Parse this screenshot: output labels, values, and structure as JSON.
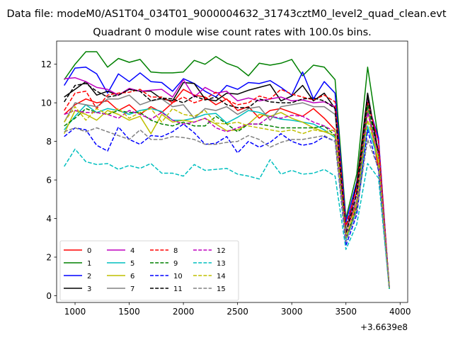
{
  "figure": {
    "suptitle": "Data file: modeM0/AS1T04_034T01_9000004632_31743cztM0_level2_quad_clean.evt"
  },
  "chart_data": {
    "type": "line",
    "title": "Quadrant 0 module wise count rates with 100.0s bins.",
    "xlabel": "",
    "ylabel": "",
    "x_offset_label": "+3.6639e8",
    "xlim": [
      830,
      4070
    ],
    "ylim": [
      -0.35,
      13.2
    ],
    "xticks": [
      1000,
      1500,
      2000,
      2500,
      3000,
      3500,
      4000
    ],
    "xtick_labels": [
      "1000",
      "1500",
      "2000",
      "2500",
      "3000",
      "3500",
      "4000"
    ],
    "yticks": [
      0,
      2,
      4,
      6,
      8,
      10,
      12
    ],
    "ytick_labels": [
      "0",
      "2",
      "4",
      "6",
      "8",
      "10",
      "12"
    ],
    "grid": false,
    "legend_position": "lower-left",
    "legend_columns": 4,
    "x": [
      900,
      1000,
      1100,
      1200,
      1300,
      1400,
      1500,
      1600,
      1700,
      1800,
      1900,
      2000,
      2100,
      2200,
      2300,
      2400,
      2500,
      2600,
      2700,
      2800,
      2900,
      3000,
      3100,
      3200,
      3300,
      3400,
      3500,
      3600,
      3700,
      3800,
      3900
    ],
    "series": [
      {
        "name": "0",
        "color": "#ff0000",
        "dash": "solid",
        "values": [
          9.4,
          9.9,
          10.2,
          10.0,
          10.1,
          9.6,
          9.9,
          9.4,
          9.8,
          9.5,
          10.0,
          10.7,
          10.4,
          10.3,
          9.9,
          10.2,
          9.6,
          9.8,
          9.2,
          9.6,
          9.7,
          9.5,
          9.3,
          9.7,
          9.2,
          8.6,
          3.4,
          4.8,
          9.7,
          6.6,
          0.4
        ]
      },
      {
        "name": "1",
        "color": "#008000",
        "dash": "solid",
        "values": [
          11.2,
          12.0,
          12.65,
          12.65,
          11.85,
          12.3,
          12.1,
          12.25,
          11.6,
          11.55,
          11.55,
          11.6,
          12.2,
          12.0,
          12.4,
          12.05,
          11.85,
          11.4,
          12.05,
          11.95,
          12.05,
          12.25,
          11.4,
          11.95,
          11.85,
          11.2,
          4.0,
          6.3,
          11.85,
          8.1,
          0.35
        ]
      },
      {
        "name": "2",
        "color": "#0000ff",
        "dash": "solid",
        "values": [
          10.9,
          11.8,
          11.85,
          11.5,
          10.5,
          11.5,
          11.1,
          11.55,
          11.1,
          11.05,
          10.6,
          11.25,
          11.0,
          10.6,
          10.3,
          10.9,
          10.7,
          11.05,
          11.0,
          11.15,
          10.8,
          10.4,
          11.6,
          10.2,
          11.1,
          10.5,
          3.8,
          5.9,
          10.0,
          8.2,
          0.4
        ]
      },
      {
        "name": "3",
        "color": "#000000",
        "dash": "solid",
        "values": [
          10.3,
          10.7,
          11.1,
          10.4,
          10.6,
          10.4,
          10.7,
          10.6,
          10.6,
          10.2,
          10.1,
          11.05,
          11.0,
          10.2,
          10.1,
          10.5,
          10.45,
          10.65,
          10.8,
          10.95,
          10.1,
          10.35,
          10.9,
          10.1,
          10.5,
          9.7,
          3.3,
          5.8,
          10.5,
          7.4,
          0.5
        ]
      },
      {
        "name": "4",
        "color": "#bf00bf",
        "dash": "solid",
        "values": [
          11.25,
          11.3,
          11.1,
          10.8,
          10.7,
          10.4,
          10.75,
          10.6,
          10.65,
          10.7,
          10.3,
          11.2,
          10.3,
          10.8,
          10.5,
          10.6,
          10.1,
          10.25,
          10.1,
          10.2,
          10.3,
          10.1,
          10.15,
          10.0,
          10.05,
          9.8,
          3.3,
          5.4,
          10.1,
          8.0,
          0.4
        ]
      },
      {
        "name": "5",
        "color": "#00bfbf",
        "dash": "solid",
        "values": [
          8.6,
          9.3,
          9.9,
          9.5,
          9.7,
          9.6,
          9.4,
          9.6,
          9.7,
          9.55,
          9.1,
          9.1,
          9.2,
          9.4,
          9.45,
          8.95,
          9.25,
          9.6,
          9.5,
          9.3,
          9.15,
          9.1,
          9.0,
          8.9,
          8.6,
          8.2,
          2.9,
          4.4,
          8.8,
          7.0,
          0.35
        ]
      },
      {
        "name": "6",
        "color": "#bfbf00",
        "dash": "solid",
        "values": [
          8.4,
          9.6,
          9.4,
          9.1,
          9.6,
          9.4,
          9.1,
          9.3,
          8.4,
          9.4,
          9.0,
          9.1,
          9.0,
          9.2,
          8.9,
          8.55,
          8.6,
          8.9,
          9.4,
          9.3,
          9.5,
          9.2,
          9.0,
          8.7,
          8.5,
          8.3,
          3.0,
          4.6,
          9.6,
          6.9,
          0.4
        ]
      },
      {
        "name": "7",
        "color": "#808080",
        "dash": "solid",
        "values": [
          9.0,
          10.0,
          9.9,
          9.8,
          10.2,
          10.2,
          10.4,
          9.9,
          10.1,
          10.2,
          9.8,
          9.9,
          9.2,
          9.7,
          9.6,
          9.8,
          9.4,
          9.7,
          9.8,
          9.1,
          9.8,
          9.9,
          10.0,
          9.8,
          9.8,
          9.4,
          3.4,
          5.0,
          9.8,
          7.2,
          0.4
        ]
      },
      {
        "name": "8",
        "color": "#ff0000",
        "dash": "dashed",
        "values": [
          9.6,
          10.5,
          10.6,
          9.7,
          10.4,
          10.5,
          10.55,
          10.7,
          10.3,
          10.3,
          10.0,
          10.3,
          10.0,
          10.2,
          10.55,
          10.15,
          9.9,
          10.0,
          10.35,
          10.2,
          10.7,
          10.45,
          10.3,
          10.15,
          10.4,
          10.05,
          3.6,
          5.6,
          10.0,
          8.0,
          0.4
        ]
      },
      {
        "name": "9",
        "color": "#008000",
        "dash": "dashed",
        "values": [
          8.8,
          9.2,
          9.7,
          9.5,
          9.4,
          9.6,
          9.5,
          9.5,
          9.1,
          8.9,
          8.8,
          9.0,
          8.8,
          8.8,
          9.3,
          8.9,
          8.5,
          8.9,
          8.9,
          8.8,
          8.7,
          8.7,
          8.7,
          8.7,
          8.8,
          8.3,
          3.0,
          4.6,
          9.9,
          7.4,
          0.4
        ]
      },
      {
        "name": "10",
        "color": "#0000ff",
        "dash": "dashed",
        "values": [
          8.25,
          8.7,
          8.6,
          7.8,
          7.5,
          8.75,
          8.1,
          7.85,
          8.3,
          8.25,
          8.5,
          8.9,
          8.45,
          7.85,
          7.9,
          8.25,
          7.4,
          8.0,
          7.7,
          7.95,
          8.4,
          8.0,
          7.8,
          7.9,
          8.25,
          8.0,
          2.6,
          4.2,
          8.6,
          6.5,
          0.35
        ]
      },
      {
        "name": "11",
        "color": "#000000",
        "dash": "dashed",
        "values": [
          10.05,
          10.9,
          11.0,
          10.6,
          10.3,
          10.4,
          10.7,
          10.6,
          10.1,
          10.25,
          10.2,
          10.0,
          10.35,
          10.15,
          10.3,
          9.9,
          9.75,
          9.75,
          10.2,
          10.05,
          10.0,
          10.0,
          10.2,
          10.25,
          10.1,
          9.7,
          3.2,
          5.3,
          10.3,
          7.4,
          0.4
        ]
      },
      {
        "name": "12",
        "color": "#bf00bf",
        "dash": "dashed",
        "values": [
          9.4,
          9.6,
          9.5,
          9.5,
          9.4,
          9.2,
          9.6,
          9.4,
          9.15,
          9.5,
          9.1,
          8.9,
          9.0,
          9.2,
          8.7,
          8.5,
          8.7,
          8.9,
          8.9,
          9.3,
          9.2,
          9.35,
          9.3,
          9.0,
          8.8,
          8.5,
          3.1,
          4.7,
          9.5,
          7.3,
          0.4
        ]
      },
      {
        "name": "13",
        "color": "#00bfbf",
        "dash": "dashed",
        "values": [
          6.7,
          7.6,
          6.95,
          6.8,
          6.85,
          6.55,
          6.75,
          6.6,
          6.85,
          6.35,
          6.35,
          6.2,
          6.8,
          6.5,
          6.55,
          6.6,
          6.3,
          6.2,
          6.05,
          7.05,
          6.3,
          6.5,
          6.3,
          6.35,
          6.55,
          6.2,
          2.4,
          3.7,
          6.85,
          6.1,
          0.35
        ]
      },
      {
        "name": "14",
        "color": "#bfbf00",
        "dash": "dashed",
        "values": [
          9.0,
          9.8,
          9.1,
          9.7,
          9.4,
          9.7,
          9.2,
          9.5,
          9.7,
          9.0,
          9.7,
          9.4,
          9.3,
          9.6,
          8.95,
          8.9,
          9.0,
          8.8,
          8.7,
          8.6,
          8.5,
          8.6,
          8.4,
          8.6,
          8.5,
          8.6,
          3.0,
          4.8,
          9.1,
          7.2,
          0.4
        ]
      },
      {
        "name": "15",
        "color": "#808080",
        "dash": "dashed",
        "values": [
          8.5,
          8.7,
          8.5,
          8.7,
          8.5,
          8.3,
          8.1,
          8.6,
          8.1,
          8.1,
          8.25,
          8.2,
          8.1,
          7.85,
          7.85,
          7.95,
          8.0,
          8.3,
          8.1,
          7.7,
          7.95,
          8.1,
          8.1,
          8.2,
          8.3,
          8.0,
          2.8,
          4.4,
          8.1,
          6.6,
          0.4
        ]
      }
    ]
  }
}
